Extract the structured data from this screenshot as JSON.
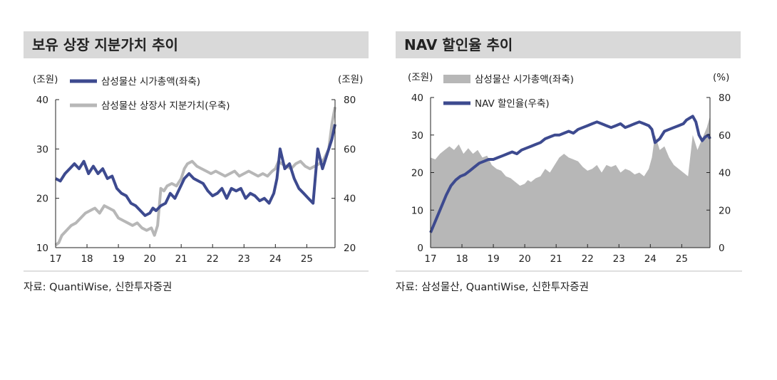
{
  "colors": {
    "navy": "#3d4a8f",
    "gray": "#b7b7b7",
    "title_bg": "#d9d9d9",
    "rule": "#bfbfbf"
  },
  "chart_data": [
    {
      "type": "line",
      "title": "보유 상장 지분가치 추이",
      "left_unit": "(조원)",
      "right_unit": "(조원)",
      "x_ticks": [
        "17",
        "18",
        "19",
        "20",
        "21",
        "22",
        "23",
        "24",
        "25"
      ],
      "xlim": [
        2017,
        2025.9
      ],
      "ylim_left": [
        10,
        40
      ],
      "y_ticks_left": [
        10,
        20,
        30,
        40
      ],
      "ylim_right": [
        20,
        80
      ],
      "y_ticks_right": [
        20,
        40,
        60,
        80
      ],
      "grid": false,
      "legend_position": "top-left",
      "source": "자료: QuantiWise, 신한투자증권",
      "series": [
        {
          "name": "삼성물산 시가총액(좌축)",
          "axis": "left",
          "color": "#3d4a8f",
          "x": [
            2017.0,
            2017.15,
            2017.3,
            2017.45,
            2017.6,
            2017.75,
            2017.9,
            2018.05,
            2018.2,
            2018.35,
            2018.5,
            2018.65,
            2018.8,
            2018.95,
            2019.1,
            2019.25,
            2019.4,
            2019.55,
            2019.7,
            2019.85,
            2020.0,
            2020.1,
            2020.2,
            2020.35,
            2020.5,
            2020.65,
            2020.8,
            2020.95,
            2021.1,
            2021.25,
            2021.4,
            2021.55,
            2021.7,
            2021.85,
            2022.0,
            2022.15,
            2022.3,
            2022.45,
            2022.6,
            2022.75,
            2022.9,
            2023.05,
            2023.2,
            2023.35,
            2023.5,
            2023.65,
            2023.8,
            2023.95,
            2024.05,
            2024.15,
            2024.3,
            2024.45,
            2024.6,
            2024.75,
            2024.9,
            2025.05,
            2025.2,
            2025.35,
            2025.5,
            2025.65,
            2025.8,
            2025.9
          ],
          "y": [
            24,
            23.5,
            25,
            26,
            27,
            26,
            27.5,
            25,
            26.5,
            25,
            26,
            24,
            24.5,
            22,
            21,
            20.5,
            19,
            18.5,
            17.5,
            16.5,
            17,
            18,
            17.5,
            18.5,
            19,
            21,
            20,
            22,
            24,
            25,
            24,
            23.5,
            23,
            21.5,
            20.5,
            21,
            22,
            20,
            22,
            21.5,
            22,
            20,
            21,
            20.5,
            19.5,
            20,
            19,
            21,
            24,
            30,
            26,
            27,
            24,
            22,
            21,
            20,
            19,
            30,
            26,
            29,
            32,
            35
          ]
        },
        {
          "name": "삼성물산 상장사 지분가치(우축)",
          "axis": "right",
          "color": "#b7b7b7",
          "x": [
            2017.0,
            2017.1,
            2017.2,
            2017.35,
            2017.5,
            2017.65,
            2017.8,
            2017.95,
            2018.1,
            2018.25,
            2018.4,
            2018.55,
            2018.7,
            2018.85,
            2019.0,
            2019.15,
            2019.3,
            2019.45,
            2019.6,
            2019.75,
            2019.9,
            2020.05,
            2020.15,
            2020.25,
            2020.35,
            2020.45,
            2020.55,
            2020.7,
            2020.85,
            2021.0,
            2021.1,
            2021.2,
            2021.35,
            2021.5,
            2021.65,
            2021.8,
            2021.95,
            2022.1,
            2022.25,
            2022.4,
            2022.55,
            2022.7,
            2022.85,
            2023.0,
            2023.15,
            2023.3,
            2023.45,
            2023.6,
            2023.75,
            2023.9,
            2024.0,
            2024.1,
            2024.2,
            2024.35,
            2024.5,
            2024.65,
            2024.8,
            2024.95,
            2025.1,
            2025.25,
            2025.4,
            2025.55,
            2025.7,
            2025.8,
            2025.9
          ],
          "y": [
            21,
            22,
            25,
            27,
            29,
            30,
            32,
            34,
            35,
            36,
            34,
            37,
            36,
            35,
            32,
            31,
            30,
            29,
            30,
            28,
            27,
            28,
            25,
            29,
            44,
            43,
            45,
            46,
            45,
            48,
            52,
            54,
            55,
            53,
            52,
            51,
            50,
            51,
            50,
            49,
            50,
            51,
            49,
            50,
            51,
            50,
            49,
            50,
            49,
            51,
            52,
            55,
            54,
            53,
            52,
            54,
            55,
            53,
            52,
            53,
            54,
            56,
            60,
            70,
            77
          ]
        }
      ]
    },
    {
      "type": "bar+line",
      "title": "NAV 할인율 추이",
      "left_unit": "(조원)",
      "right_unit": "(%)",
      "x_ticks": [
        "17",
        "18",
        "19",
        "20",
        "21",
        "22",
        "23",
        "24",
        "25"
      ],
      "xlim": [
        2017,
        2025.9
      ],
      "ylim_left": [
        0,
        40
      ],
      "y_ticks_left": [
        0,
        10,
        20,
        30,
        40
      ],
      "ylim_right": [
        0,
        80
      ],
      "y_ticks_right": [
        0,
        20,
        40,
        60,
        80
      ],
      "grid": false,
      "legend_position": "top-left",
      "source": "자료: 삼성물산, QuantiWise, 신한투자증권",
      "series": [
        {
          "name": "삼성물산 시가총액(좌축)",
          "axis": "left",
          "type": "area",
          "color": "#b7b7b7",
          "x": [
            2017.0,
            2017.15,
            2017.3,
            2017.45,
            2017.6,
            2017.75,
            2017.9,
            2018.05,
            2018.2,
            2018.35,
            2018.5,
            2018.65,
            2018.8,
            2018.95,
            2019.1,
            2019.25,
            2019.4,
            2019.55,
            2019.7,
            2019.85,
            2020.0,
            2020.1,
            2020.2,
            2020.35,
            2020.5,
            2020.65,
            2020.8,
            2020.95,
            2021.1,
            2021.25,
            2021.4,
            2021.55,
            2021.7,
            2021.85,
            2022.0,
            2022.15,
            2022.3,
            2022.45,
            2022.6,
            2022.75,
            2022.9,
            2023.05,
            2023.2,
            2023.35,
            2023.5,
            2023.65,
            2023.8,
            2023.95,
            2024.05,
            2024.15,
            2024.3,
            2024.45,
            2024.6,
            2024.75,
            2024.9,
            2025.05,
            2025.2,
            2025.35,
            2025.5,
            2025.65,
            2025.8,
            2025.9
          ],
          "y": [
            24,
            23.5,
            25,
            26,
            27,
            26,
            27.5,
            25,
            26.5,
            25,
            26,
            24,
            24.5,
            22,
            21,
            20.5,
            19,
            18.5,
            17.5,
            16.5,
            17,
            18,
            17.5,
            18.5,
            19,
            21,
            20,
            22,
            24,
            25,
            24,
            23.5,
            23,
            21.5,
            20.5,
            21,
            22,
            20,
            22,
            21.5,
            22,
            20,
            21,
            20.5,
            19.5,
            20,
            19,
            21,
            24,
            30,
            26,
            27,
            24,
            22,
            21,
            20,
            19,
            30,
            26,
            29,
            32,
            35
          ]
        },
        {
          "name": "NAV 할인율(우축)",
          "axis": "right",
          "type": "line",
          "color": "#3d4a8f",
          "x": [
            2017.0,
            2017.1,
            2017.2,
            2017.35,
            2017.5,
            2017.65,
            2017.8,
            2017.95,
            2018.1,
            2018.25,
            2018.4,
            2018.55,
            2018.7,
            2018.85,
            2019.0,
            2019.15,
            2019.3,
            2019.45,
            2019.6,
            2019.75,
            2019.9,
            2020.05,
            2020.2,
            2020.35,
            2020.5,
            2020.65,
            2020.8,
            2020.95,
            2021.1,
            2021.25,
            2021.4,
            2021.55,
            2021.7,
            2021.85,
            2022.0,
            2022.15,
            2022.3,
            2022.45,
            2022.6,
            2022.75,
            2022.9,
            2023.05,
            2023.2,
            2023.35,
            2023.5,
            2023.65,
            2023.8,
            2023.95,
            2024.05,
            2024.15,
            2024.3,
            2024.45,
            2024.6,
            2024.75,
            2024.9,
            2025.05,
            2025.15,
            2025.25,
            2025.35,
            2025.45,
            2025.55,
            2025.65,
            2025.75,
            2025.85,
            2025.9
          ],
          "y": [
            8,
            12,
            16,
            22,
            28,
            33,
            36,
            38,
            39,
            41,
            43,
            45,
            46,
            47,
            47,
            48,
            49,
            50,
            51,
            50,
            52,
            53,
            54,
            55,
            56,
            58,
            59,
            60,
            60,
            61,
            62,
            61,
            63,
            64,
            65,
            66,
            67,
            66,
            65,
            64,
            65,
            66,
            64,
            65,
            66,
            67,
            66,
            65,
            63,
            56,
            58,
            62,
            63,
            64,
            65,
            66,
            68,
            69,
            70,
            67,
            60,
            57,
            59,
            60,
            58
          ]
        }
      ]
    }
  ]
}
